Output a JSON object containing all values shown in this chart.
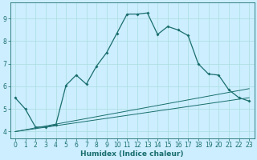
{
  "title": "",
  "xlabel": "Humidex (Indice chaleur)",
  "bg_color": "#cceeff",
  "line_color": "#1a6e6e",
  "grid_color": "#aadddd",
  "xlim": [
    -0.5,
    23.5
  ],
  "ylim": [
    3.7,
    9.7
  ],
  "xticks": [
    0,
    1,
    2,
    3,
    4,
    5,
    6,
    7,
    8,
    9,
    10,
    11,
    12,
    13,
    14,
    15,
    16,
    17,
    18,
    19,
    20,
    21,
    22,
    23
  ],
  "yticks": [
    4,
    5,
    6,
    7,
    8,
    9
  ],
  "main_line_x": [
    0,
    1,
    2,
    3,
    4,
    5,
    6,
    7,
    8,
    9,
    10,
    11,
    12,
    13,
    14,
    15,
    16,
    17,
    18,
    19,
    20,
    21,
    22,
    23
  ],
  "main_line_y": [
    5.5,
    5.0,
    4.2,
    4.2,
    4.3,
    6.05,
    6.5,
    6.1,
    6.9,
    7.5,
    8.35,
    9.2,
    9.2,
    9.25,
    8.3,
    8.65,
    8.5,
    8.25,
    7.0,
    6.55,
    6.5,
    5.85,
    5.5,
    5.35
  ],
  "line2_x": [
    0,
    23
  ],
  "line2_y": [
    4.0,
    5.5
  ],
  "line3_x": [
    0,
    23
  ],
  "line3_y": [
    4.0,
    5.9
  ],
  "tick_fontsize": 5.5,
  "xlabel_fontsize": 6.5
}
